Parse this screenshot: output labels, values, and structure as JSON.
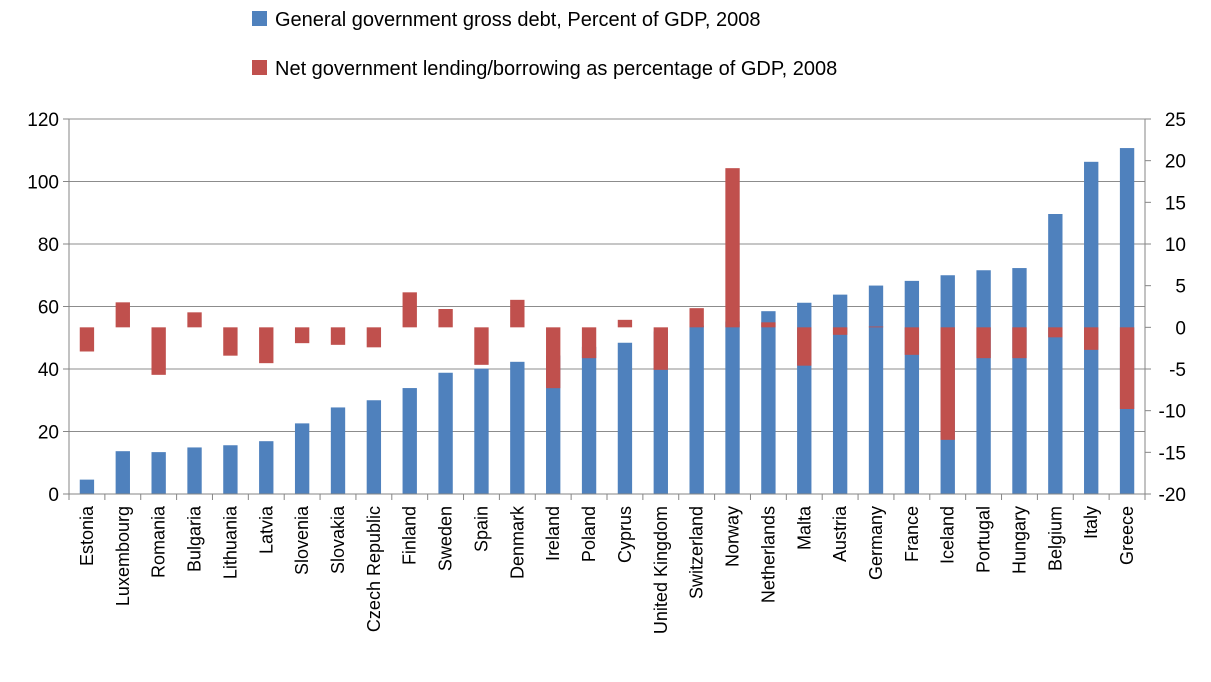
{
  "chart_data": {
    "type": "bar",
    "title": "",
    "xlabel": "",
    "ylabel": "",
    "y2label": "",
    "legend_position": "top",
    "grid": true,
    "ylim": [
      0,
      120
    ],
    "yticks": [
      0,
      20,
      40,
      60,
      80,
      100,
      120
    ],
    "y2lim": [
      -20,
      25
    ],
    "y2ticks": [
      -20,
      -15,
      -10,
      -5,
      0,
      5,
      10,
      15,
      20,
      25
    ],
    "categories": [
      "Estonia",
      "Luxembourg",
      "Romania",
      "Bulgaria",
      "Lithuania",
      "Latvia",
      "Slovenia",
      "Slovakia",
      "Czech Republic",
      "Finland",
      "Sweden",
      "Spain",
      "Denmark",
      "Ireland",
      "Poland",
      "Cyprus",
      "United Kingdom",
      "Switzerland",
      "Norway",
      "Netherlands",
      "Malta",
      "Austria",
      "Germany",
      "France",
      "Iceland",
      "Portugal",
      "Hungary",
      "Belgium",
      "Italy",
      "Greece"
    ],
    "series": [
      {
        "name": "General government gross debt, Percent of GDP, 2008",
        "axis": "left",
        "color": "#4f81bd",
        "values": [
          4.6,
          13.7,
          13.4,
          14.9,
          15.6,
          16.9,
          22.6,
          27.7,
          30.0,
          33.9,
          38.8,
          40.1,
          42.3,
          44.3,
          47.1,
          48.4,
          52.0,
          53.9,
          55.2,
          58.5,
          61.2,
          63.8,
          66.7,
          68.2,
          70.0,
          71.6,
          72.3,
          89.6,
          106.3,
          110.7
        ]
      },
      {
        "name": "Net government lending/borrowing as percentage of GDP, 2008",
        "axis": "right",
        "color": "#c0504d",
        "values": [
          -2.9,
          3.0,
          -5.7,
          1.8,
          -3.4,
          -4.3,
          -1.9,
          -2.1,
          -2.4,
          4.2,
          2.2,
          -4.5,
          3.3,
          -7.3,
          -3.7,
          0.9,
          -5.1,
          2.3,
          19.1,
          0.6,
          -4.6,
          -0.9,
          0.1,
          -3.3,
          -13.5,
          -3.7,
          -3.7,
          -1.2,
          -2.7,
          -9.8
        ]
      }
    ]
  }
}
